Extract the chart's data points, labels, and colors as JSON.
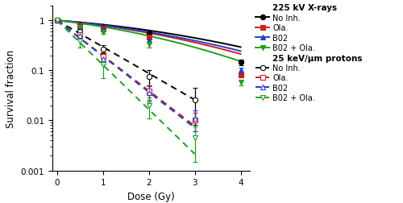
{
  "xlabel": "Dose (Gy)",
  "ylabel": "Survival fraction",
  "xlim": [
    -0.1,
    4.2
  ],
  "ylim": [
    0.001,
    2.0
  ],
  "xticks": [
    0,
    1,
    2,
    3,
    4
  ],
  "xrays_doses": [
    0,
    0.5,
    1,
    2,
    4
  ],
  "proton_doses": [
    0,
    0.5,
    1,
    2,
    3
  ],
  "xrays_no_inh_mean": [
    1.0,
    0.83,
    0.72,
    0.55,
    0.145
  ],
  "xrays_no_inh_err": [
    0.03,
    0.05,
    0.04,
    0.05,
    0.018
  ],
  "xrays_ola_mean": [
    1.0,
    0.82,
    0.7,
    0.46,
    0.082
  ],
  "xrays_ola_err": [
    0.03,
    0.05,
    0.04,
    0.04,
    0.01
  ],
  "xrays_b02_mean": [
    1.0,
    0.78,
    0.67,
    0.4,
    0.1
  ],
  "xrays_b02_err": [
    0.03,
    0.04,
    0.04,
    0.04,
    0.012
  ],
  "xrays_b02ola_mean": [
    1.0,
    0.72,
    0.58,
    0.33,
    0.058
  ],
  "xrays_b02ola_err": [
    0.03,
    0.06,
    0.05,
    0.04,
    0.008
  ],
  "proton_no_inh_mean": [
    1.0,
    0.6,
    0.27,
    0.075,
    0.026
  ],
  "proton_no_inh_err": [
    0.03,
    0.07,
    0.05,
    0.025,
    0.018
  ],
  "proton_ola_mean": [
    1.0,
    0.52,
    0.19,
    0.038,
    0.01
  ],
  "proton_ola_err": [
    0.03,
    0.06,
    0.04,
    0.012,
    0.004
  ],
  "proton_b02_mean": [
    1.0,
    0.5,
    0.17,
    0.036,
    0.011
  ],
  "proton_b02_err": [
    0.03,
    0.06,
    0.04,
    0.012,
    0.005
  ],
  "proton_b02ola_mean": [
    1.0,
    0.38,
    0.13,
    0.02,
    0.0045
  ],
  "proton_b02ola_err": [
    0.03,
    0.09,
    0.06,
    0.009,
    0.003
  ],
  "color_no_inh": "#000000",
  "color_ola": "#cc2020",
  "color_b02": "#2040cc",
  "color_b02ola": "#20a020",
  "lq_alpha_no_inh": 0.155,
  "lq_beta_no_inh": 0.038,
  "lq_alpha_ola": 0.195,
  "lq_beta_ola": 0.048,
  "lq_alpha_b02": 0.185,
  "lq_beta_b02": 0.042,
  "lq_alpha_b02ola": 0.24,
  "lq_beta_b02ola": 0.058,
  "lin_alpha_no_inh": 1.22,
  "lin_alpha_ola": 1.62,
  "lin_alpha_b02": 1.65,
  "lin_alpha_b02ola": 2.05,
  "legend_xrays_title": "225 kV X-rays",
  "legend_proton_title": "25 keV/μm protons",
  "legend_labels": [
    "No Inh.",
    "Ola.",
    "B02",
    "B02 + Ola."
  ]
}
